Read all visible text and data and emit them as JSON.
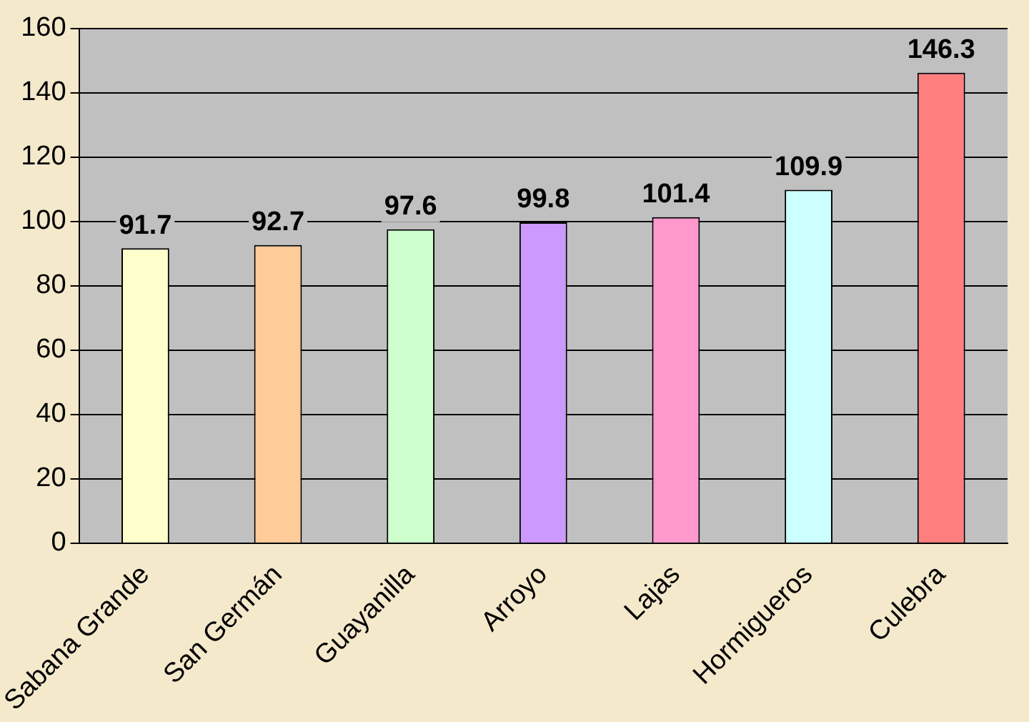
{
  "chart_data": {
    "type": "bar",
    "categories": [
      "Sabana Grande",
      "San Germán",
      "Guayanilla",
      "Arroyo",
      "Lajas",
      "Hormigueros",
      "Culebra"
    ],
    "values": [
      91.7,
      92.7,
      97.6,
      99.8,
      101.4,
      109.9,
      146.3
    ],
    "colors": [
      "#ffffcc",
      "#ffcc99",
      "#ccffcc",
      "#cc99ff",
      "#ff99cc",
      "#ccffff",
      "#ff7f7f"
    ],
    "ylim": [
      0,
      160
    ],
    "yticks": [
      0,
      20,
      40,
      60,
      80,
      100,
      120,
      140,
      160
    ],
    "grid": "y",
    "data_labels": true,
    "legend": false
  }
}
